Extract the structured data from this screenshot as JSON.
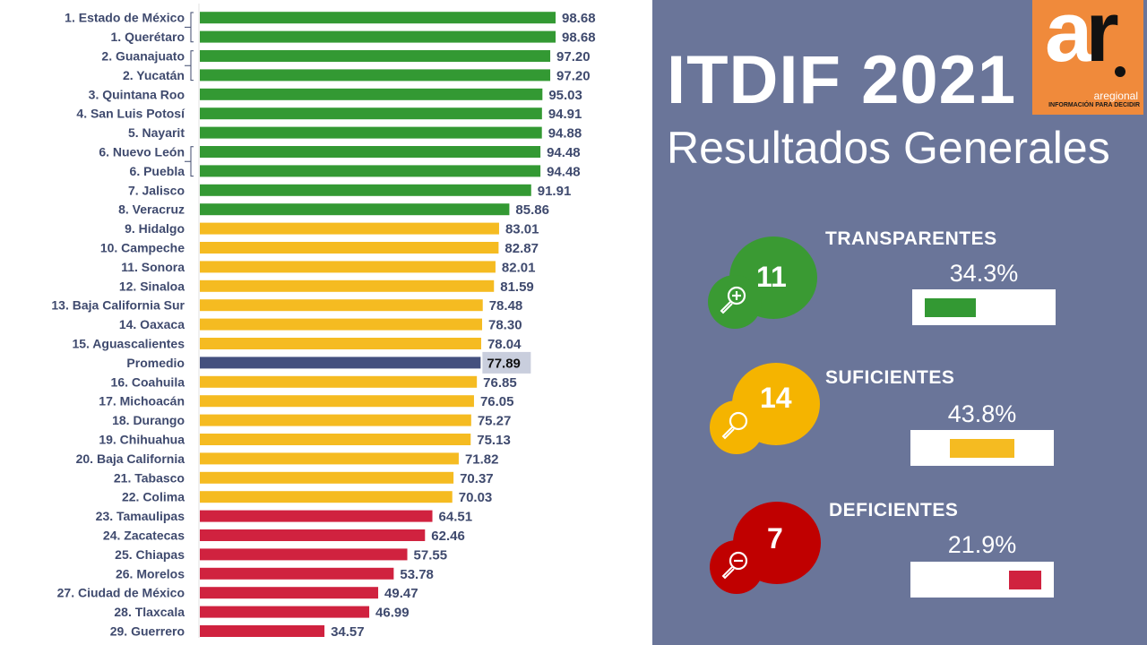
{
  "chart_data": {
    "type": "bar",
    "orientation": "horizontal",
    "title": "ITDIF 2021",
    "subtitle": "Resultados Generales",
    "xlabel": "",
    "ylabel": "",
    "xlim": [
      0,
      100
    ],
    "grid": false,
    "legend": "none",
    "categories": [
      "1. Estado de México",
      "1. Querétaro",
      "2. Guanajuato",
      "2. Yucatán",
      "3. Quintana Roo",
      "4. San Luis Potosí",
      "5. Nayarit",
      "6. Nuevo León",
      "6. Puebla",
      "7. Jalisco",
      "8. Veracruz",
      "9. Hidalgo",
      "10. Campeche",
      "11. Sonora",
      "12. Sinaloa",
      "13. Baja California Sur",
      "14. Oaxaca",
      "15. Aguascalientes",
      "Promedio",
      "16. Coahuila",
      "17. Michoacán",
      "18. Durango",
      "19. Chihuahua",
      "20. Baja California",
      "21. Tabasco",
      "22. Colima",
      "23. Tamaulipas",
      "24. Zacatecas",
      "25. Chiapas",
      "26. Morelos",
      "27. Ciudad de México",
      "28. Tlaxcala",
      "29. Guerrero"
    ],
    "values": [
      98.68,
      98.68,
      97.2,
      97.2,
      95.03,
      94.91,
      94.88,
      94.48,
      94.48,
      91.91,
      85.86,
      83.01,
      82.87,
      82.01,
      81.59,
      78.48,
      78.3,
      78.04,
      77.89,
      76.85,
      76.05,
      75.27,
      75.13,
      71.82,
      70.37,
      70.03,
      64.51,
      62.46,
      57.55,
      53.78,
      49.47,
      46.99,
      34.57
    ],
    "value_labels": [
      "98.68",
      "98.68",
      "97.20",
      "97.20",
      "95.03",
      "94.91",
      "94.88",
      "94.48",
      "94.48",
      "91.91",
      "85.86",
      "83.01",
      "82.87",
      "82.01",
      "81.59",
      "78.48",
      "78.30",
      "78.04",
      "77.89",
      "76.85",
      "76.05",
      "75.27",
      "75.13",
      "71.82",
      "70.37",
      "70.03",
      "64.51",
      "62.46",
      "57.55",
      "53.78",
      "49.47",
      "46.99",
      "34.57"
    ],
    "bar_classes": [
      "transparente",
      "transparente",
      "transparente",
      "transparente",
      "transparente",
      "transparente",
      "transparente",
      "transparente",
      "transparente",
      "transparente",
      "transparente",
      "suficiente",
      "suficiente",
      "suficiente",
      "suficiente",
      "suficiente",
      "suficiente",
      "suficiente",
      "promedio",
      "suficiente",
      "suficiente",
      "suficiente",
      "suficiente",
      "suficiente",
      "suficiente",
      "suficiente",
      "deficiente",
      "deficiente",
      "deficiente",
      "deficiente",
      "deficiente",
      "deficiente",
      "deficiente"
    ],
    "tie_brackets": [
      [
        0,
        1
      ],
      [
        2,
        3
      ],
      [
        7,
        8
      ]
    ],
    "highlighted_category": "Promedio"
  },
  "colors": {
    "transparente": "#339933",
    "suficiente": "#f5bb21",
    "promedio": "#44507e",
    "deficiente": "#d0223f",
    "text": "#3f4a6e",
    "panel_bg": "#6a7599",
    "avg_highlight": "#c9cedd",
    "logo_bg": "#f08a3b",
    "bubble_green": "#3a9a33",
    "bubble_yellow": "#f5b400",
    "bubble_red": "#c00000"
  },
  "header": {
    "title": "ITDIF 2021",
    "subtitle": "Resultados Generales"
  },
  "logo": {
    "letters_a": "a",
    "letters_r": "r",
    "name": "aregional",
    "tagline": "INFORMACIÓN PARA DECIDIR"
  },
  "groups": [
    {
      "title": "TRANSPARENTES",
      "count": "11",
      "percent_label": "34.3%",
      "percent": 34.3,
      "icon": "zoom-in-icon",
      "color_key": "bubble_green",
      "bar_color_key": "transparente",
      "bar_align": "left"
    },
    {
      "title": "SUFICIENTES",
      "count": "14",
      "percent_label": "43.8%",
      "percent": 43.8,
      "icon": "search-icon",
      "color_key": "bubble_yellow",
      "bar_color_key": "suficiente",
      "bar_align": "center"
    },
    {
      "title": "DEFICIENTES",
      "count": "7",
      "percent_label": "21.9%",
      "percent": 21.9,
      "icon": "zoom-out-icon",
      "color_key": "bubble_red",
      "bar_color_key": "deficiente",
      "bar_align": "right"
    }
  ]
}
